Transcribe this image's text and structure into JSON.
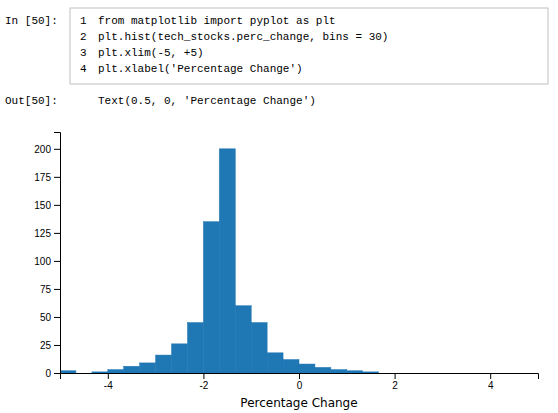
{
  "chart_data": {
    "type": "histogram",
    "annotations": [
      "In [50]:",
      "1",
      "from matplotlib import pyplot as plt",
      "2",
      "plt.hist(tech_stocks.perc_change, bins = 30)",
      "3",
      "plt.xlim(-5, +5)",
      "4",
      "plt.xlabel('Percentage Change')",
      "Out[50]:",
      "Text(0.5, 0, 'Percentage Change')"
    ],
    "xlabel": "Percentage Change",
    "bins": [
      -5,
      -4.666666666666667,
      -4.333333333333333,
      -4,
      -3.666666666666667,
      -3.333333333333333,
      -3,
      -2.666666666666667,
      -2.333333333333333,
      -2,
      -1.666666666666667,
      -1.333333333333333,
      -1,
      -0.666666666666667,
      -0.333333333333333,
      0,
      0.333333333333333,
      0.666666666666667,
      1,
      1.333333333333333,
      1.666666666666667,
      2,
      2.333333333333333,
      2.666666666666667,
      3,
      3.333333333333333,
      3.666666666666667,
      4,
      4.333333333333333,
      4.666666666666667,
      5
    ],
    "values": [
      2,
      0,
      1,
      3,
      6,
      9,
      16,
      26,
      45,
      135,
      200,
      60,
      45,
      18,
      12,
      8,
      5,
      3,
      2,
      1,
      0,
      0,
      0,
      0,
      0,
      0,
      0,
      0,
      0,
      0
    ],
    "color": "#1f77b4",
    "xlim": [
      -5,
      5
    ],
    "ylim": [
      0,
      215
    ],
    "xticks": [
      -4,
      -2,
      0,
      2,
      4
    ],
    "yticks": [
      0,
      25,
      50,
      75,
      100,
      125,
      150,
      175,
      200
    ]
  }
}
